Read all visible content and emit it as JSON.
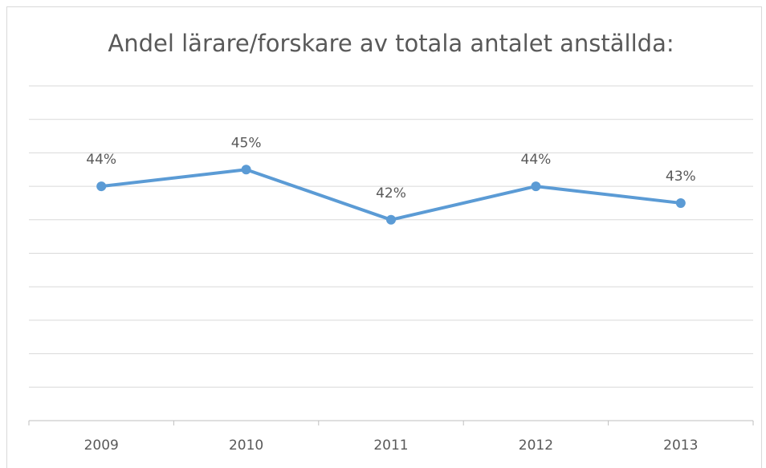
{
  "chart_data": {
    "type": "line",
    "title": "Andel lärare/forskare av totala antalet anställda:",
    "categories": [
      "2009",
      "2010",
      "2011",
      "2012",
      "2013"
    ],
    "series": [
      {
        "name": "Andel",
        "color": "#5b9bd5",
        "values": [
          44,
          45,
          42,
          44,
          43
        ],
        "value_labels": [
          "44%",
          "45%",
          "42%",
          "44%",
          "43%"
        ]
      }
    ],
    "ylim": [
      30,
      50
    ],
    "yticks": [
      30,
      32,
      34,
      36,
      38,
      40,
      42,
      44,
      46,
      48,
      50
    ],
    "grid": true
  }
}
